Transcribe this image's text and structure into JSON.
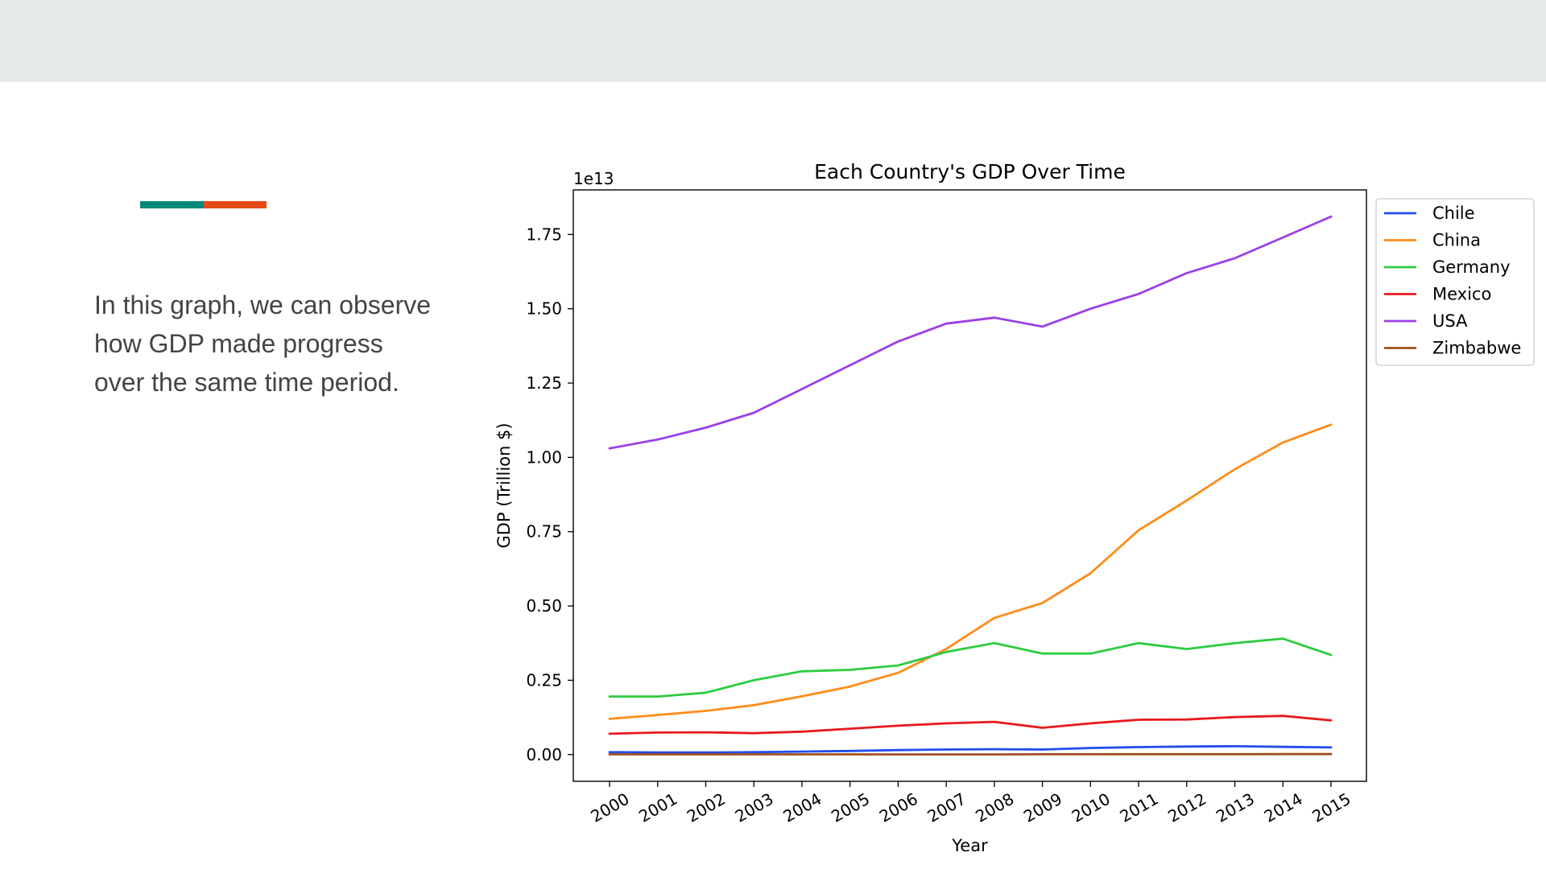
{
  "slide": {
    "background": "#ffffff",
    "top_band_color": "#e4e9e9",
    "accent_colors": [
      "#00897b",
      "#e64a19"
    ],
    "body_text": "In this graph, we can observe how GDP made progress over the same time period."
  },
  "chart_data": {
    "type": "line",
    "title": "Each Country's GDP Over Time",
    "xlabel": "Year",
    "ylabel": "GDP (Trillion $)",
    "offset_label": "1e13",
    "x": [
      2000,
      2001,
      2002,
      2003,
      2004,
      2005,
      2006,
      2007,
      2008,
      2009,
      2010,
      2011,
      2012,
      2013,
      2014,
      2015
    ],
    "x_tick_labels": [
      "2000",
      "2001",
      "2002",
      "2003",
      "2004",
      "2005",
      "2006",
      "2007",
      "2008",
      "2009",
      "2010",
      "2011",
      "2012",
      "2013",
      "2014",
      "2015"
    ],
    "y_ticks": [
      0,
      0.25,
      0.5,
      0.75,
      1.0,
      1.25,
      1.5,
      1.75
    ],
    "y_tick_labels": [
      "0.00",
      "0.25",
      "0.50",
      "0.75",
      "1.00",
      "1.25",
      "1.50",
      "1.75"
    ],
    "ylim": [
      -0.09,
      1.9
    ],
    "y_scale_note": "values in units of 1e13",
    "grid": false,
    "legend_position": "outside-right-top",
    "series": [
      {
        "name": "Chile",
        "color": "#1f4ef0",
        "values": [
          0.008,
          0.007,
          0.007,
          0.008,
          0.01,
          0.012,
          0.015,
          0.017,
          0.018,
          0.017,
          0.022,
          0.025,
          0.027,
          0.028,
          0.026,
          0.024
        ]
      },
      {
        "name": "China",
        "color": "#ff8c1a",
        "values": [
          0.12,
          0.133,
          0.147,
          0.166,
          0.196,
          0.229,
          0.275,
          0.355,
          0.46,
          0.51,
          0.61,
          0.755,
          0.855,
          0.96,
          1.05,
          1.11
        ]
      },
      {
        "name": "Germany",
        "color": "#2ecc40",
        "values": [
          0.195,
          0.195,
          0.208,
          0.25,
          0.28,
          0.285,
          0.3,
          0.345,
          0.375,
          0.34,
          0.34,
          0.375,
          0.355,
          0.375,
          0.39,
          0.335
        ]
      },
      {
        "name": "Mexico",
        "color": "#e8191f",
        "values": [
          0.07,
          0.074,
          0.075,
          0.072,
          0.077,
          0.087,
          0.097,
          0.105,
          0.11,
          0.09,
          0.105,
          0.117,
          0.118,
          0.126,
          0.13,
          0.115
        ]
      },
      {
        "name": "USA",
        "color": "#9b3fe8",
        "values": [
          1.03,
          1.06,
          1.1,
          1.15,
          1.23,
          1.31,
          1.39,
          1.45,
          1.47,
          1.44,
          1.5,
          1.55,
          1.62,
          1.67,
          1.74,
          1.81
        ]
      },
      {
        "name": "Zimbabwe",
        "color": "#a0501e",
        "values": [
          0.0006,
          0.0007,
          0.0006,
          0.0006,
          0.0006,
          0.0006,
          0.0005,
          0.0005,
          0.0004,
          0.0009,
          0.001,
          0.0012,
          0.0013,
          0.0013,
          0.0014,
          0.0014
        ]
      }
    ]
  }
}
